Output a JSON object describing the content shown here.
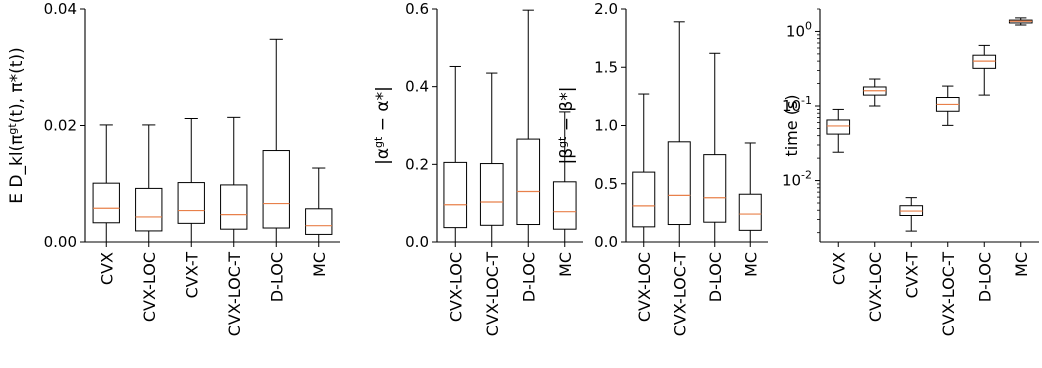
{
  "chart_data": [
    {
      "type": "box",
      "ylabel": "E D_kl(π^gt(t), π*(t))",
      "ylim": [
        0,
        0.04
      ],
      "yscale": "linear",
      "yticks": [
        0.0,
        0.02,
        0.04
      ],
      "ytick_labels": [
        "0.00",
        "0.02",
        "0.04"
      ],
      "categories": [
        "CVX",
        "CVX-LOC",
        "CVX-T",
        "CVX-LOC-T",
        "D-LOC",
        "MC"
      ],
      "boxes": [
        {
          "whislo": 0.0,
          "q1": 0.0033,
          "med": 0.0058,
          "q3": 0.0101,
          "whishi": 0.0201
        },
        {
          "whislo": 0.0,
          "q1": 0.0019,
          "med": 0.0043,
          "q3": 0.0092,
          "whishi": 0.0201
        },
        {
          "whislo": 0.0,
          "q1": 0.0032,
          "med": 0.0054,
          "q3": 0.0102,
          "whishi": 0.0212
        },
        {
          "whislo": 0.0,
          "q1": 0.0022,
          "med": 0.0047,
          "q3": 0.0098,
          "whishi": 0.0214
        },
        {
          "whislo": 0.0,
          "q1": 0.0024,
          "med": 0.0066,
          "q3": 0.0157,
          "whishi": 0.0348
        },
        {
          "whislo": 0.0,
          "q1": 0.0013,
          "med": 0.0028,
          "q3": 0.0057,
          "whishi": 0.0127
        }
      ]
    },
    {
      "type": "box",
      "ylabel": "|α^gt − α*|",
      "ylim": [
        0,
        0.6
      ],
      "yscale": "linear",
      "yticks": [
        0.0,
        0.2,
        0.4,
        0.6
      ],
      "ytick_labels": [
        "0.0",
        "0.2",
        "0.4",
        "0.6"
      ],
      "categories": [
        "CVX-LOC",
        "CVX-LOC-T",
        "D-LOC",
        "MC"
      ],
      "boxes": [
        {
          "whislo": 0.0,
          "q1": 0.037,
          "med": 0.096,
          "q3": 0.205,
          "whishi": 0.452
        },
        {
          "whislo": 0.0,
          "q1": 0.043,
          "med": 0.103,
          "q3": 0.202,
          "whishi": 0.435
        },
        {
          "whislo": 0.0,
          "q1": 0.045,
          "med": 0.13,
          "q3": 0.265,
          "whishi": 0.597
        },
        {
          "whislo": 0.0,
          "q1": 0.033,
          "med": 0.078,
          "q3": 0.155,
          "whishi": 0.335
        }
      ]
    },
    {
      "type": "box",
      "ylabel": "|β^gt − β*|",
      "ylim": [
        0,
        2.0
      ],
      "yscale": "linear",
      "yticks": [
        0.0,
        0.5,
        1.0,
        1.5,
        2.0
      ],
      "ytick_labels": [
        "0.0",
        "0.5",
        "1.0",
        "1.5",
        "2.0"
      ],
      "categories": [
        "CVX-LOC",
        "CVX-LOC-T",
        "D-LOC",
        "MC"
      ],
      "boxes": [
        {
          "whislo": 0.0,
          "q1": 0.13,
          "med": 0.31,
          "q3": 0.6,
          "whishi": 1.27
        },
        {
          "whislo": 0.0,
          "q1": 0.15,
          "med": 0.4,
          "q3": 0.86,
          "whishi": 1.89
        },
        {
          "whislo": 0.0,
          "q1": 0.17,
          "med": 0.38,
          "q3": 0.75,
          "whishi": 1.62
        },
        {
          "whislo": 0.0,
          "q1": 0.1,
          "med": 0.24,
          "q3": 0.41,
          "whishi": 0.85
        }
      ]
    },
    {
      "type": "box",
      "ylabel": "time (s)",
      "ylim": [
        0.0015,
        2.0
      ],
      "yscale": "log",
      "yticks": [
        0.01,
        0.1,
        1
      ],
      "ytick_labels": [
        "10^-2",
        "10^-1",
        "10^0"
      ],
      "categories": [
        "CVX",
        "CVX-LOC",
        "CVX-T",
        "CVX-LOC-T",
        "D-LOC",
        "MC"
      ],
      "boxes": [
        {
          "whislo": 0.024,
          "q1": 0.042,
          "med": 0.054,
          "q3": 0.065,
          "whishi": 0.09
        },
        {
          "whislo": 0.1,
          "q1": 0.14,
          "med": 0.16,
          "q3": 0.18,
          "whishi": 0.23
        },
        {
          "whislo": 0.0021,
          "q1": 0.0034,
          "med": 0.0039,
          "q3": 0.0046,
          "whishi": 0.0059
        },
        {
          "whislo": 0.055,
          "q1": 0.085,
          "med": 0.105,
          "q3": 0.13,
          "whishi": 0.185
        },
        {
          "whislo": 0.14,
          "q1": 0.32,
          "med": 0.4,
          "q3": 0.48,
          "whishi": 0.65
        },
        {
          "whislo": 1.22,
          "q1": 1.3,
          "med": 1.37,
          "q3": 1.42,
          "whishi": 1.52
        }
      ]
    }
  ],
  "colors": {
    "box_edge": "#000000",
    "median": "#e8804a",
    "background": "#ffffff"
  }
}
